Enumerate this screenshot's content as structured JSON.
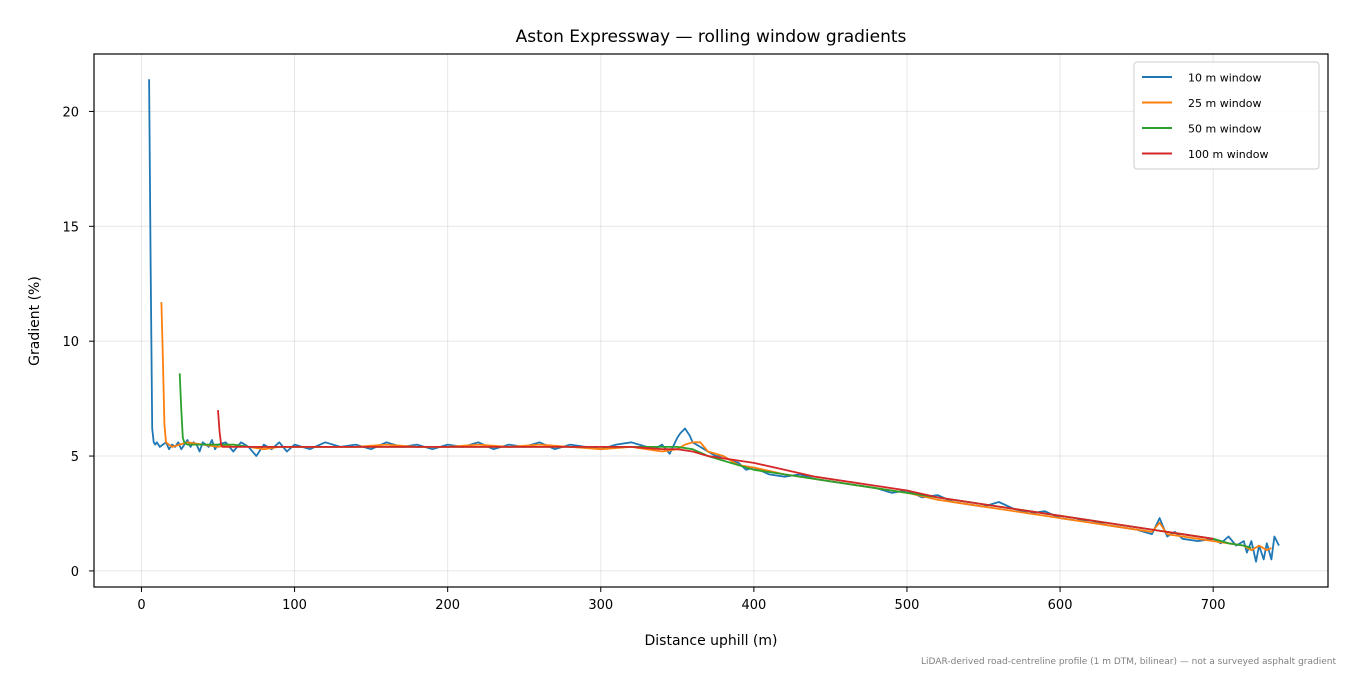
{
  "chart_data": {
    "type": "line",
    "title": "Aston Expressway — rolling window gradients",
    "xlabel": "Distance uphill (m)",
    "ylabel": "Gradient (%)",
    "xlim": [
      -31,
      775
    ],
    "ylim": [
      -0.7,
      22.5
    ],
    "x_ticks": [
      0,
      100,
      200,
      300,
      400,
      500,
      600,
      700
    ],
    "y_ticks": [
      0,
      5,
      10,
      15,
      20
    ],
    "grid": true,
    "legend_position": "top-right",
    "footnote": "LiDAR-derived road-centreline profile (1 m DTM, bilinear) — not a surveyed asphalt gradient",
    "series": [
      {
        "name": "10 m window",
        "color": "#1f77b4",
        "x": [
          5,
          6,
          7,
          8,
          9,
          10,
          12,
          14,
          16,
          18,
          20,
          22,
          24,
          26,
          28,
          30,
          32,
          34,
          36,
          38,
          40,
          42,
          44,
          46,
          48,
          50,
          55,
          60,
          65,
          70,
          75,
          80,
          85,
          90,
          95,
          100,
          110,
          120,
          130,
          140,
          150,
          160,
          170,
          180,
          190,
          200,
          210,
          220,
          230,
          240,
          250,
          260,
          270,
          280,
          290,
          300,
          310,
          320,
          330,
          335,
          340,
          345,
          350,
          352,
          355,
          358,
          360,
          365,
          370,
          375,
          380,
          385,
          390,
          395,
          400,
          410,
          420,
          430,
          440,
          450,
          460,
          470,
          480,
          490,
          500,
          510,
          520,
          530,
          540,
          550,
          560,
          570,
          580,
          590,
          600,
          610,
          620,
          630,
          640,
          650,
          660,
          665,
          670,
          675,
          680,
          690,
          700,
          705,
          710,
          715,
          720,
          722,
          725,
          728,
          730,
          733,
          735,
          738,
          740,
          743
        ],
        "y": [
          21.4,
          13.5,
          6.2,
          5.6,
          5.5,
          5.6,
          5.4,
          5.5,
          5.6,
          5.3,
          5.5,
          5.4,
          5.6,
          5.3,
          5.5,
          5.7,
          5.4,
          5.6,
          5.5,
          5.2,
          5.6,
          5.5,
          5.4,
          5.7,
          5.3,
          5.5,
          5.6,
          5.2,
          5.6,
          5.4,
          5.0,
          5.5,
          5.3,
          5.6,
          5.2,
          5.5,
          5.3,
          5.6,
          5.4,
          5.5,
          5.3,
          5.6,
          5.4,
          5.5,
          5.3,
          5.5,
          5.4,
          5.6,
          5.3,
          5.5,
          5.4,
          5.6,
          5.3,
          5.5,
          5.4,
          5.3,
          5.5,
          5.6,
          5.4,
          5.3,
          5.5,
          5.1,
          5.8,
          6.0,
          6.2,
          5.9,
          5.6,
          5.4,
          5.2,
          5.0,
          5.0,
          4.8,
          4.7,
          4.4,
          4.5,
          4.2,
          4.1,
          4.2,
          4.0,
          3.9,
          3.8,
          3.7,
          3.6,
          3.4,
          3.5,
          3.2,
          3.3,
          3.0,
          2.9,
          2.8,
          3.0,
          2.7,
          2.5,
          2.6,
          2.3,
          2.2,
          2.2,
          2.0,
          1.9,
          1.8,
          1.6,
          2.3,
          1.5,
          1.7,
          1.4,
          1.3,
          1.4,
          1.2,
          1.5,
          1.1,
          1.3,
          0.8,
          1.3,
          0.4,
          1.1,
          0.5,
          1.2,
          0.5,
          1.5,
          1.1
        ]
      },
      {
        "name": "25 m window",
        "color": "#ff7f0e",
        "x": [
          13,
          14,
          15,
          16,
          18,
          20,
          25,
          30,
          40,
          50,
          60,
          70,
          80,
          90,
          100,
          120,
          140,
          160,
          180,
          200,
          220,
          240,
          260,
          280,
          300,
          320,
          340,
          350,
          355,
          360,
          365,
          370,
          380,
          390,
          400,
          420,
          440,
          460,
          480,
          500,
          520,
          540,
          560,
          580,
          600,
          620,
          640,
          660,
          665,
          670,
          680,
          690,
          700,
          710,
          720,
          725,
          730,
          735,
          738
        ],
        "y": [
          11.7,
          9.2,
          6.4,
          5.6,
          5.5,
          5.4,
          5.5,
          5.6,
          5.5,
          5.4,
          5.5,
          5.4,
          5.3,
          5.4,
          5.4,
          5.4,
          5.4,
          5.5,
          5.4,
          5.4,
          5.5,
          5.4,
          5.5,
          5.4,
          5.3,
          5.4,
          5.2,
          5.3,
          5.5,
          5.6,
          5.6,
          5.2,
          5.0,
          4.6,
          4.5,
          4.2,
          4.0,
          3.8,
          3.6,
          3.4,
          3.1,
          2.9,
          2.7,
          2.5,
          2.3,
          2.1,
          1.9,
          1.7,
          2.1,
          1.6,
          1.5,
          1.4,
          1.3,
          1.2,
          1.1,
          0.9,
          1.1,
          0.9,
          1.0
        ]
      },
      {
        "name": "50 m window",
        "color": "#2ca02c",
        "x": [
          25,
          26,
          27,
          28,
          30,
          35,
          40,
          50,
          60,
          70,
          80,
          100,
          120,
          140,
          160,
          180,
          200,
          220,
          240,
          260,
          280,
          300,
          320,
          340,
          350,
          360,
          370,
          380,
          390,
          400,
          420,
          440,
          460,
          480,
          500,
          520,
          540,
          560,
          580,
          600,
          620,
          640,
          660,
          680,
          700,
          710,
          720,
          725
        ],
        "y": [
          8.6,
          7.0,
          5.8,
          5.6,
          5.5,
          5.5,
          5.5,
          5.5,
          5.5,
          5.4,
          5.4,
          5.4,
          5.4,
          5.4,
          5.4,
          5.4,
          5.4,
          5.4,
          5.4,
          5.4,
          5.4,
          5.4,
          5.4,
          5.4,
          5.4,
          5.3,
          5.0,
          4.8,
          4.6,
          4.4,
          4.2,
          4.0,
          3.8,
          3.6,
          3.4,
          3.2,
          3.0,
          2.8,
          2.6,
          2.4,
          2.2,
          2.0,
          1.8,
          1.6,
          1.4,
          1.2,
          1.1,
          1.0
        ]
      },
      {
        "name": "100 m window",
        "color": "#d62728",
        "x": [
          50,
          51,
          52,
          53,
          55,
          60,
          70,
          80,
          100,
          120,
          140,
          160,
          180,
          200,
          220,
          240,
          260,
          280,
          300,
          320,
          340,
          350,
          360,
          370,
          380,
          390,
          400,
          420,
          440,
          460,
          480,
          500,
          520,
          540,
          560,
          580,
          600,
          620,
          640,
          660,
          680,
          700
        ],
        "y": [
          7.0,
          6.1,
          5.5,
          5.4,
          5.4,
          5.4,
          5.4,
          5.4,
          5.4,
          5.4,
          5.4,
          5.4,
          5.4,
          5.4,
          5.4,
          5.4,
          5.4,
          5.4,
          5.4,
          5.4,
          5.3,
          5.3,
          5.2,
          5.0,
          4.9,
          4.8,
          4.7,
          4.4,
          4.1,
          3.9,
          3.7,
          3.5,
          3.2,
          3.0,
          2.8,
          2.6,
          2.4,
          2.2,
          2.0,
          1.8,
          1.6,
          1.4
        ]
      }
    ]
  }
}
